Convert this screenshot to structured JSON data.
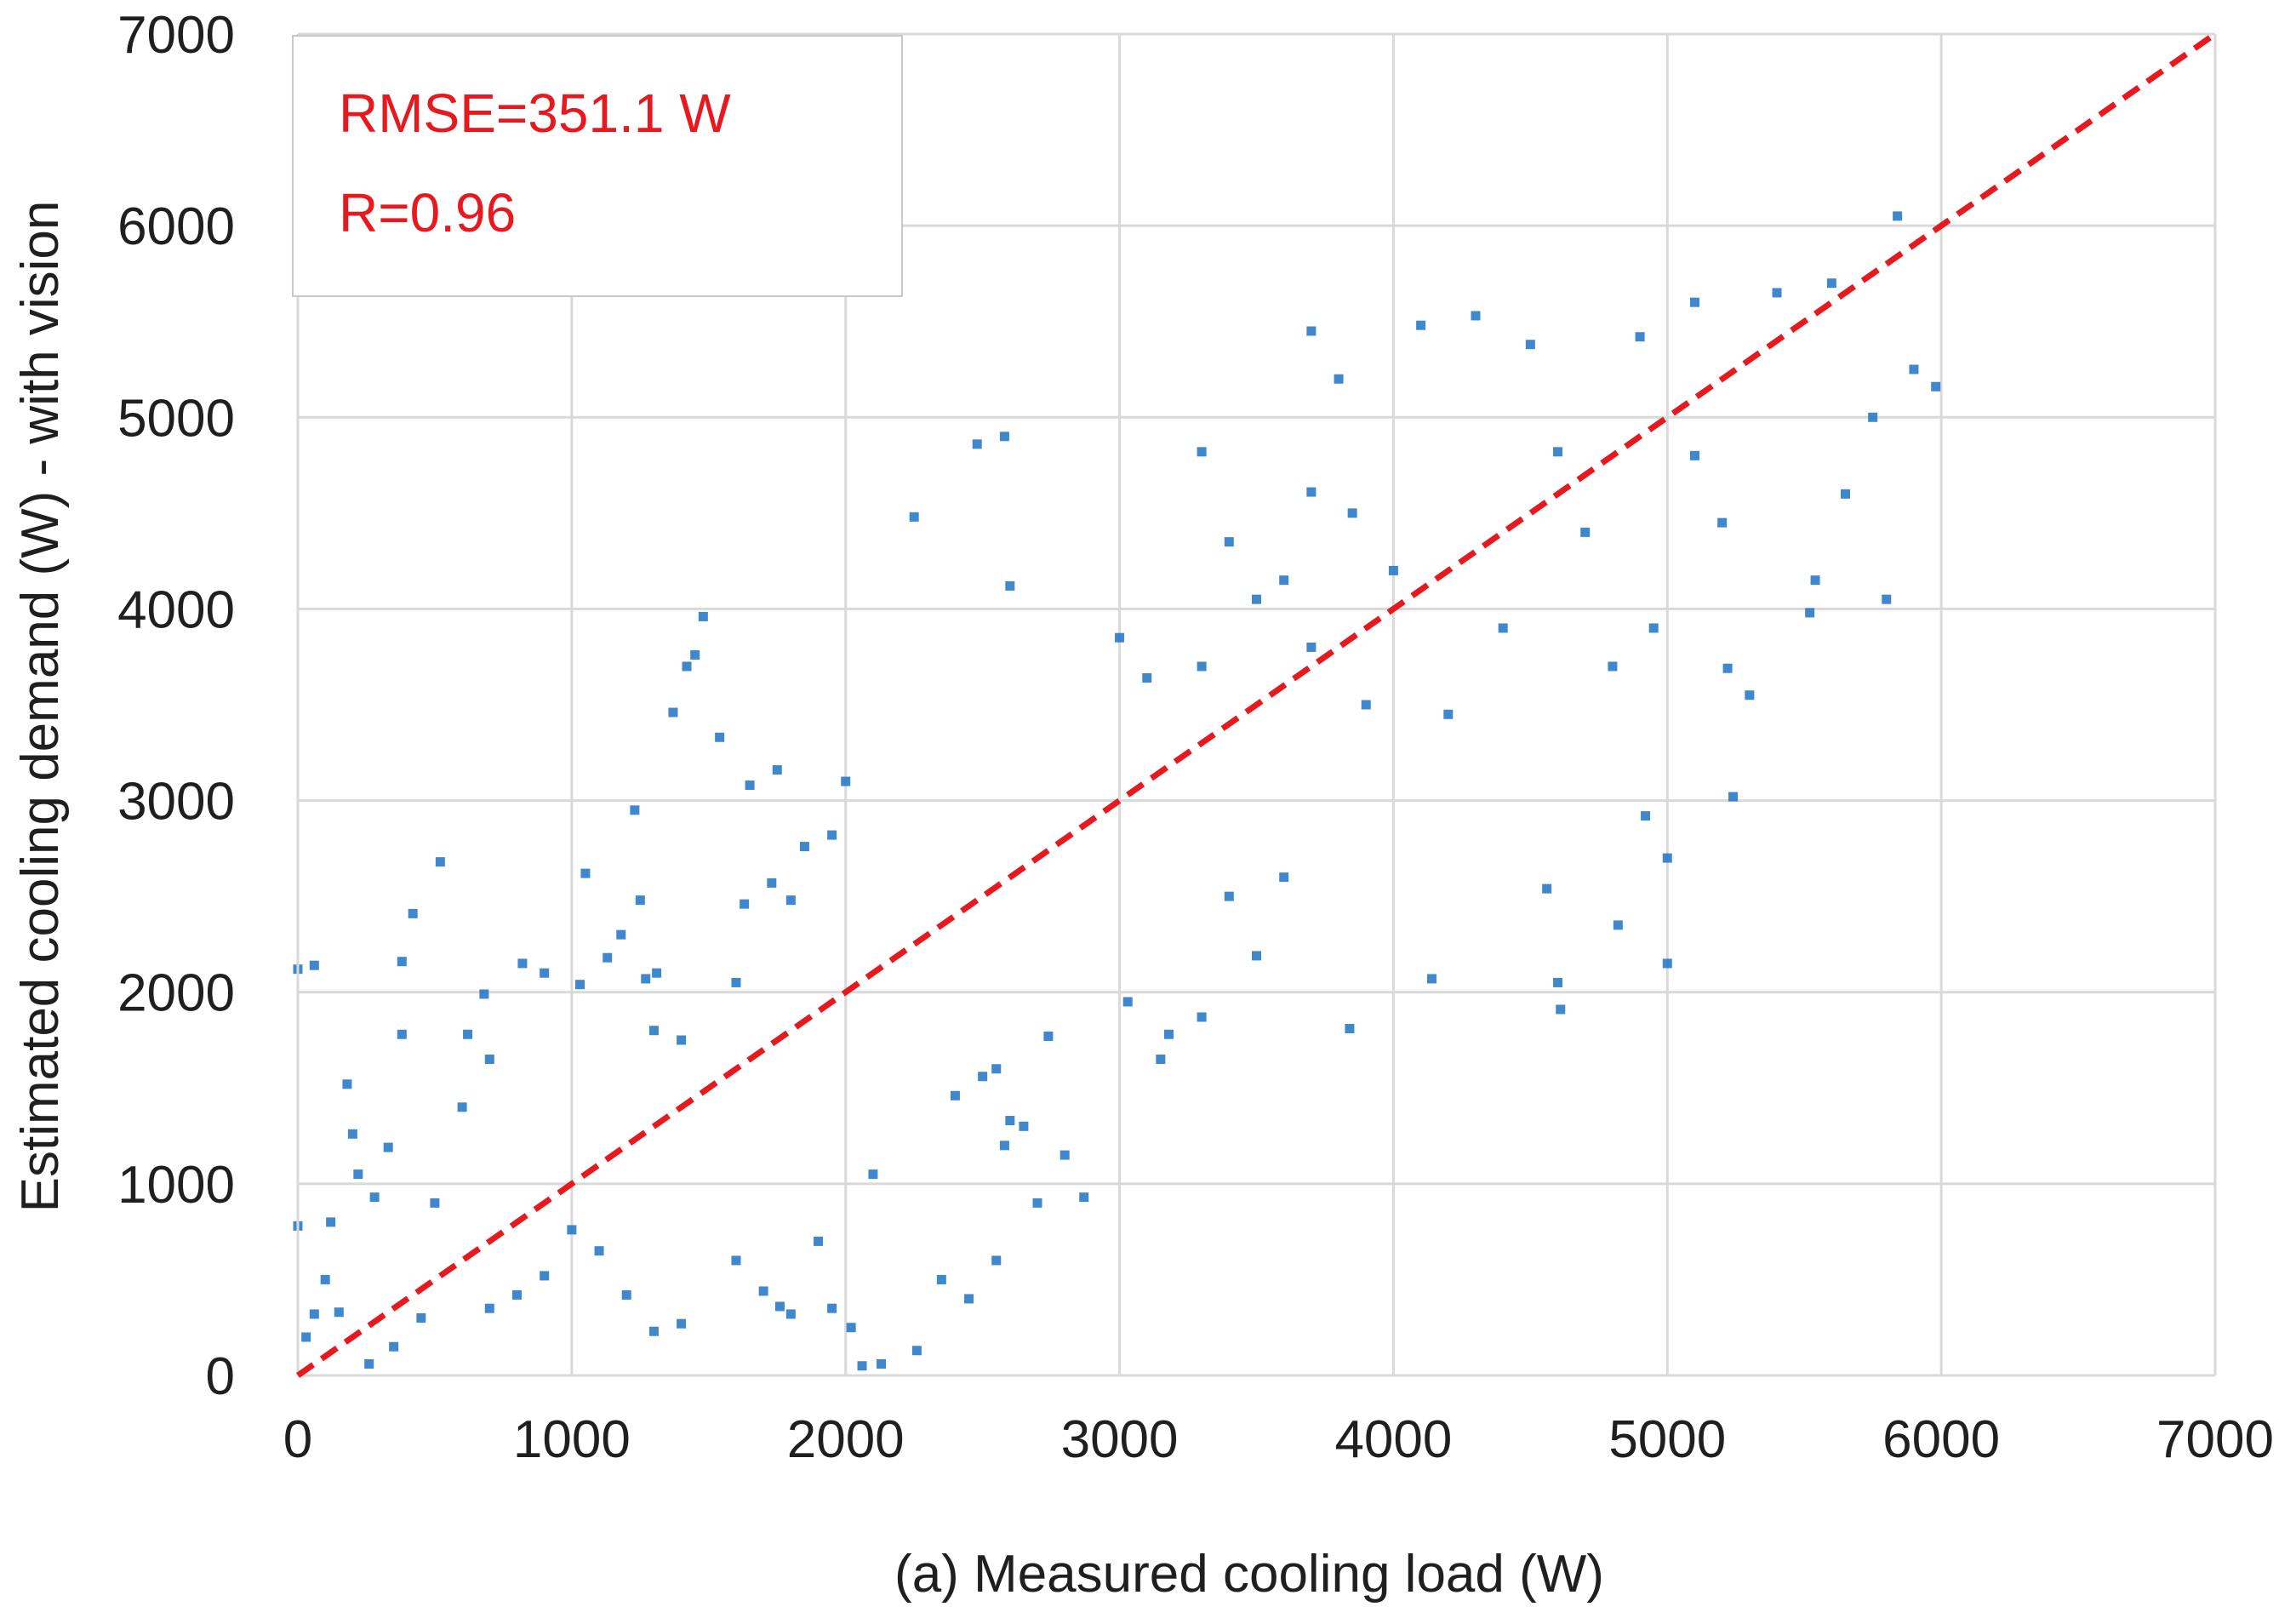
{
  "chart_data": {
    "type": "scatter",
    "title": "",
    "xlabel": "(a) Measured cooling load  (W)",
    "ylabel": "Estimated cooling demand (W) - with vision",
    "xlim": [
      0,
      7000
    ],
    "ylim": [
      0,
      7000
    ],
    "x_ticks": [
      0,
      1000,
      2000,
      3000,
      4000,
      5000,
      6000,
      7000
    ],
    "y_ticks": [
      0,
      1000,
      2000,
      3000,
      4000,
      5000,
      6000,
      7000
    ],
    "x_tick_labels": [
      "0",
      "1000",
      "2000",
      "3000",
      "4000",
      "5000",
      "6000",
      "7000"
    ],
    "y_tick_labels": [
      "0",
      "1000",
      "2000",
      "3000",
      "4000",
      "5000",
      "6000",
      "7000"
    ],
    "grid": true,
    "annotations": {
      "rmse": "RMSE=351.1 W",
      "r": "R=0.96"
    },
    "reference_line": {
      "style": "dashed",
      "color": "#e8191e",
      "points": [
        [
          0,
          0
        ],
        [
          7000,
          7000
        ]
      ]
    },
    "series": [
      {
        "marker": "square",
        "color": "#1f73c4",
        "points": [
          [
            0,
            2120
          ],
          [
            60,
            2140
          ],
          [
            380,
            2160
          ],
          [
            520,
            2680
          ],
          [
            420,
            2410
          ],
          [
            180,
            1520
          ],
          [
            200,
            1260
          ],
          [
            220,
            1050
          ],
          [
            280,
            930
          ],
          [
            330,
            1190
          ],
          [
            380,
            1780
          ],
          [
            620,
            1780
          ],
          [
            680,
            1990
          ],
          [
            820,
            2150
          ],
          [
            1030,
            2040
          ],
          [
            1130,
            2180
          ],
          [
            1180,
            2300
          ],
          [
            1250,
            2480
          ],
          [
            1270,
            2070
          ],
          [
            1310,
            2100
          ],
          [
            1370,
            3460
          ],
          [
            1420,
            3700
          ],
          [
            1450,
            3760
          ],
          [
            1480,
            3960
          ],
          [
            1650,
            3080
          ],
          [
            1750,
            3160
          ],
          [
            1730,
            2570
          ],
          [
            1850,
            2760
          ],
          [
            1950,
            2820
          ],
          [
            2000,
            3100
          ],
          [
            1540,
            3330
          ],
          [
            1630,
            2460
          ],
          [
            1230,
            2950
          ],
          [
            2250,
            4480
          ],
          [
            2480,
            4860
          ],
          [
            2580,
            4900
          ],
          [
            2600,
            4120
          ],
          [
            3100,
            3640
          ],
          [
            3300,
            4820
          ],
          [
            3500,
            4050
          ],
          [
            2260,
            130
          ],
          [
            2060,
            50
          ],
          [
            2130,
            60
          ],
          [
            2020,
            250
          ],
          [
            2580,
            1200
          ],
          [
            2600,
            1330
          ],
          [
            2650,
            1300
          ],
          [
            2740,
            1770
          ],
          [
            2870,
            930
          ],
          [
            3030,
            1950
          ],
          [
            3180,
            1780
          ],
          [
            3300,
            1870
          ],
          [
            3500,
            2190
          ],
          [
            3840,
            1810
          ],
          [
            4140,
            2070
          ],
          [
            4560,
            2540
          ],
          [
            4600,
            2050
          ],
          [
            4610,
            1910
          ],
          [
            4820,
            2350
          ],
          [
            5000,
            2150
          ],
          [
            5000,
            2700
          ],
          [
            5240,
            3020
          ],
          [
            4920,
            2920
          ],
          [
            5220,
            3690
          ],
          [
            5520,
            3980
          ],
          [
            5540,
            4150
          ],
          [
            5800,
            4050
          ],
          [
            5840,
            6050
          ],
          [
            5980,
            5160
          ],
          [
            5900,
            5250
          ],
          [
            4300,
            5530
          ],
          [
            4600,
            4820
          ],
          [
            4700,
            4400
          ],
          [
            3700,
            4610
          ],
          [
            3850,
            4500
          ],
          [
            4000,
            4200
          ],
          [
            5200,
            4450
          ],
          [
            5100,
            4800
          ],
          [
            1050,
            2620
          ],
          [
            900,
            2100
          ],
          [
            700,
            1650
          ],
          [
            600,
            1400
          ],
          [
            500,
            900
          ],
          [
            450,
            300
          ],
          [
            350,
            150
          ],
          [
            260,
            60
          ],
          [
            150,
            330
          ],
          [
            120,
            800
          ],
          [
            100,
            500
          ],
          [
            60,
            320
          ],
          [
            30,
            200
          ],
          [
            0,
            780
          ],
          [
            1600,
            600
          ],
          [
            1700,
            440
          ],
          [
            1760,
            360
          ],
          [
            1800,
            320
          ],
          [
            2400,
            1460
          ],
          [
            2500,
            1560
          ],
          [
            2550,
            1600
          ],
          [
            2700,
            900
          ],
          [
            2800,
            1150
          ],
          [
            2350,
            500
          ],
          [
            2450,
            400
          ],
          [
            2550,
            600
          ],
          [
            1000,
            760
          ],
          [
            1100,
            650
          ],
          [
            1200,
            420
          ],
          [
            1300,
            230
          ],
          [
            1400,
            270
          ],
          [
            900,
            520
          ],
          [
            800,
            420
          ],
          [
            700,
            350
          ],
          [
            1900,
            700
          ],
          [
            1950,
            350
          ],
          [
            2100,
            1050
          ],
          [
            1300,
            1800
          ],
          [
            1400,
            1750
          ],
          [
            1600,
            2050
          ],
          [
            1800,
            2480
          ],
          [
            3150,
            1650
          ],
          [
            3600,
            2600
          ],
          [
            3400,
            2500
          ],
          [
            3700,
            3800
          ],
          [
            3900,
            3500
          ],
          [
            4200,
            3450
          ],
          [
            4400,
            3900
          ],
          [
            4800,
            3700
          ],
          [
            4950,
            3900
          ],
          [
            5300,
            3550
          ],
          [
            5650,
            4600
          ],
          [
            5750,
            5000
          ],
          [
            5600,
            5700
          ],
          [
            5400,
            5650
          ],
          [
            5100,
            5600
          ],
          [
            4900,
            5420
          ],
          [
            4500,
            5380
          ],
          [
            4100,
            5480
          ],
          [
            3700,
            5450
          ],
          [
            3800,
            5200
          ],
          [
            3400,
            4350
          ],
          [
            3600,
            4150
          ],
          [
            3300,
            3700
          ],
          [
            3000,
            3850
          ]
        ]
      }
    ]
  }
}
